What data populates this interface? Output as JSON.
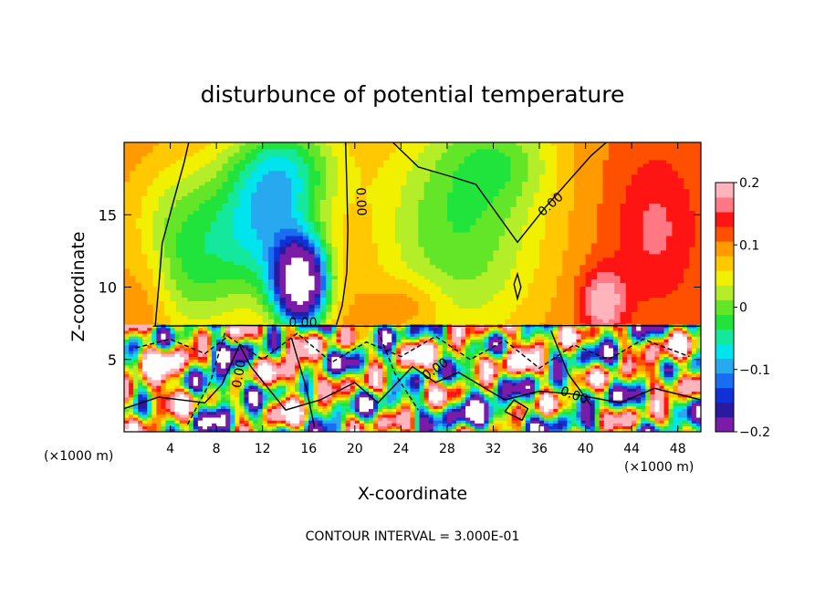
{
  "chart_data": {
    "type": "heatmap",
    "title": "disturbunce of potential temperature",
    "xlabel": "X-coordinate",
    "ylabel": "Z-coordinate",
    "x_units": "(×1000 m)",
    "x_units_right": "(×1000 m)",
    "footer": "CONTOUR INTERVAL = 3.000E-01",
    "xlim": [
      0,
      50
    ],
    "ylim": [
      0,
      20
    ],
    "x_ticks": [
      4,
      8,
      12,
      16,
      20,
      24,
      28,
      32,
      36,
      40,
      44,
      48
    ],
    "x_tick_labels": [
      "4",
      "8",
      "12",
      "16",
      "20",
      "24",
      "28",
      "32",
      "36",
      "40",
      "44",
      "48"
    ],
    "y_ticks": [
      5,
      10,
      15
    ],
    "y_tick_labels": [
      "5",
      "10",
      "15"
    ],
    "colorbar": {
      "range": [
        -0.2,
        0.2
      ],
      "tick_values": [
        0.2,
        0.1,
        0,
        -0.1,
        -0.2
      ],
      "tick_labels": [
        "0.2",
        "0.1",
        "0",
        "−0.1",
        "−0.2"
      ],
      "colors": [
        "#7a1ca8",
        "#2a1aa0",
        "#1030d8",
        "#1a6cf0",
        "#28a8ee",
        "#00e4ee",
        "#14e89c",
        "#20e43c",
        "#64e628",
        "#b4ee28",
        "#f0f000",
        "#ffc800",
        "#ff9a00",
        "#ff5000",
        "#ff1414",
        "#ff7884",
        "#ffb4bc"
      ]
    },
    "contour_labels": [
      {
        "text": "0.00",
        "x": 20.5,
        "z": 15.9,
        "angle": 88
      },
      {
        "text": "0.00",
        "x": 37.0,
        "z": 15.7,
        "angle": -42
      },
      {
        "text": "0.00",
        "x": 15.5,
        "z": 7.5,
        "angle": 0
      },
      {
        "text": "0.00",
        "x": 10.0,
        "z": 4.0,
        "angle": -80
      },
      {
        "text": "0.00",
        "x": 27.0,
        "z": 4.3,
        "angle": -35
      },
      {
        "text": "0.00",
        "x": 39.0,
        "z": 2.5,
        "angle": 20
      }
    ]
  }
}
